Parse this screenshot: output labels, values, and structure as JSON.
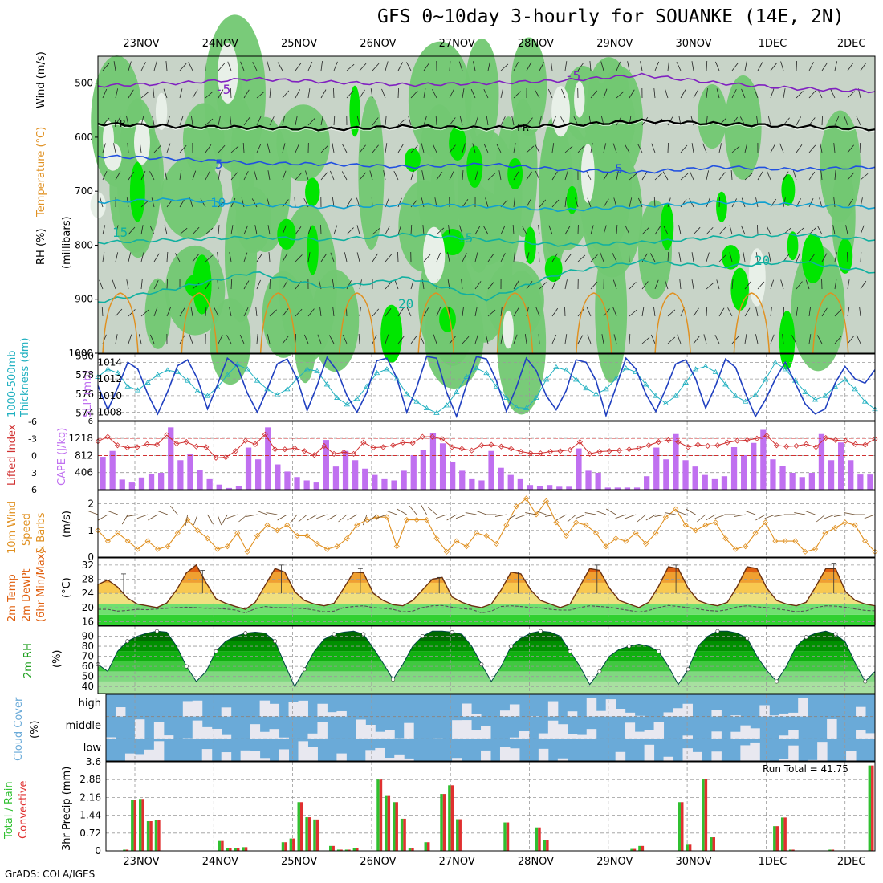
{
  "title": "GFS 0~10day 3-hourly for SOUANKE (14E, 2N)",
  "credit": "GrADS: COLA/IGES",
  "dates": [
    "23NOV",
    "24NOV",
    "25NOV",
    "26NOV",
    "27NOV",
    "28NOV",
    "29NOV",
    "30NOV",
    "1DEC",
    "2DEC"
  ],
  "colors": {
    "rh_light": "#c8d4c8",
    "rh_mid": "#72c872",
    "rh_bright": "#00e600",
    "temp_cold": "#8020c0",
    "temp_fr": "#000000",
    "temp_blue": "#2050e0",
    "temp_cyan": "#10a0d0",
    "temp_teal": "#10b0a0",
    "temp_warm": "#e09020",
    "slp": "#2040c0",
    "thickness": "#20b0c0",
    "cape": "#c070f0",
    "lifted": "#d03030",
    "wind": "#e09020",
    "t2m": "#e06010",
    "cloud": "#6aaad8",
    "precip_total": "#30c030",
    "precip_conv": "#e03030"
  },
  "chart_data": [
    {
      "type": "heatmap",
      "name": "upper_air",
      "ylabel": [
        "RH (%)",
        "Temperature (°C)",
        "Wind (m/s)"
      ],
      "ylabel2": "(millibars)",
      "y_ticks": [
        500,
        600,
        700,
        800,
        900,
        1000
      ],
      "ylim": [
        1000,
        450
      ],
      "contour_labels": [
        "-5",
        "FR",
        "5",
        "10",
        "15",
        "20"
      ],
      "isotherms_mb": {
        "-5": [
          505,
          500,
          492,
          498,
          503,
          500,
          495,
          485,
          500,
          510,
          515
        ],
        "0": [
          575,
          580,
          582,
          585,
          580,
          583,
          578,
          570,
          575,
          580,
          585
        ],
        "5": [
          635,
          640,
          648,
          650,
          655,
          650,
          660,
          665,
          655,
          660,
          655
        ],
        "10": [
          720,
          715,
          725,
          730,
          725,
          728,
          735,
          728,
          720,
          725,
          730
        ],
        "15": [
          795,
          790,
          785,
          790,
          780,
          790,
          800,
          795,
          785,
          780,
          790
        ],
        "20": [
          905,
          880,
          850,
          880,
          860,
          900,
          850,
          830,
          840,
          830,
          850
        ]
      }
    },
    {
      "type": "line",
      "name": "pressure",
      "ylabel_left": [
        "1000-500mb",
        "Thickness (dm)"
      ],
      "ylabel_right": "SLP (mb)",
      "left_ticks": [
        574,
        576,
        578,
        580
      ],
      "right_ticks": [
        1008,
        1010,
        1012,
        1014
      ],
      "left_ylim": [
        573.2,
        580.2
      ],
      "right_ylim": [
        1007,
        1015
      ],
      "slp": [
        1011.2,
        1008.3,
        1011.0,
        1014.0,
        1013.2,
        1010.2,
        1007.8,
        1010.5,
        1013.6,
        1014.3,
        1012.0,
        1008.4,
        1011.3,
        1014.5,
        1013.5,
        1010.3,
        1008.0,
        1010.8,
        1013.8,
        1014.4,
        1012.0,
        1008.2,
        1011.2,
        1014.6,
        1013.0,
        1010.0,
        1008.0,
        1010.4,
        1014.2,
        1014.5,
        1012.1,
        1008.0,
        1011.0,
        1014.7,
        1014.5,
        1010.4,
        1007.5,
        1011.3,
        1014.7,
        1014.4,
        1011.8,
        1008.1,
        1011.0,
        1014.5,
        1013.0,
        1010.0,
        1008.3,
        1010.6,
        1014.3,
        1014.0,
        1011.8,
        1007.6,
        1011.0,
        1014.5,
        1013.2,
        1010.2,
        1008.1,
        1010.8,
        1013.8,
        1014.3,
        1012.0,
        1008.5,
        1011.2,
        1014.4,
        1013.4,
        1010.3,
        1007.5,
        1009.5,
        1012.0,
        1014.0,
        1011.5,
        1009.0,
        1007.8,
        1008.4,
        1011.5,
        1013.5,
        1012.0,
        1011.5,
        1013.1
      ],
      "thickness": [
        577.8,
        578.6,
        578.2,
        576.8,
        576.4,
        577.2,
        578.0,
        578.5,
        578.3,
        577.4,
        576.3,
        575.8,
        576.7,
        578.0,
        579.1,
        578.6,
        577.4,
        576.5,
        575.9,
        576.5,
        577.6,
        578.6,
        578.4,
        577.0,
        575.6,
        574.9,
        575.5,
        576.8,
        578.2,
        578.6,
        577.6,
        576.0,
        575.2,
        574.5,
        574.0,
        574.8,
        576.2,
        577.8,
        578.7,
        578.2,
        576.8,
        575.6,
        574.6,
        574.5,
        575.6,
        577.5,
        578.8,
        578.5,
        577.5,
        576.6,
        576.0,
        576.5,
        577.6,
        578.7,
        578.3,
        577.0,
        575.8,
        575.0,
        575.8,
        577.2,
        578.6,
        578.9,
        578.3,
        577.0,
        575.8,
        575.2,
        575.9,
        577.5,
        579.3,
        578.6,
        577.4,
        576.2,
        575.4,
        575.8,
        576.8,
        577.5,
        576.5,
        575.2,
        574.4
      ]
    },
    {
      "type": "bar",
      "name": "stability",
      "ylabel_left": "Lifted Index",
      "ylabel_right": "CAPE (J/kg)",
      "left_ticks": [
        "-6",
        "-3",
        "0",
        "3",
        "6"
      ],
      "right_ticks": [
        406,
        812,
        1218
      ],
      "cape_ylim": [
        0,
        1620
      ],
      "cape": [
        780,
        920,
        240,
        170,
        290,
        380,
        400,
        1480,
        700,
        840,
        470,
        250,
        120,
        40,
        80,
        1000,
        720,
        1480,
        600,
        430,
        300,
        220,
        170,
        1180,
        550,
        920,
        700,
        500,
        350,
        250,
        220,
        450,
        820,
        950,
        1350,
        1100,
        650,
        450,
        250,
        220,
        920,
        520,
        350,
        250,
        110,
        80,
        110,
        70,
        70,
        980,
        450,
        400,
        50,
        50,
        50,
        50,
        320,
        1000,
        720,
        1320,
        700,
        550,
        350,
        250,
        320,
        1010,
        820,
        1110,
        1420,
        720,
        560,
        400,
        300,
        400,
        1320,
        700,
        1120,
        700,
        360,
        360
      ],
      "lifted_index": [
        -2.5,
        -3.3,
        -1.8,
        -1.4,
        -1.5,
        -2.0,
        -1.9,
        -3.6,
        -2.1,
        -2.4,
        -1.6,
        -1.5,
        0.4,
        0.3,
        -0.8,
        -2.6,
        -2.0,
        -3.7,
        -1.1,
        -1.1,
        -1.3,
        -0.8,
        -0.1,
        -1.7,
        -0.3,
        -0.6,
        -0.3,
        -2.3,
        -1.4,
        -1.5,
        -1.8,
        -2.3,
        -2.2,
        -3.3,
        -3.3,
        -2.9,
        -1.5,
        -1.2,
        -0.9,
        -1.8,
        -1.9,
        -1.6,
        -1.2,
        -0.7,
        -0.4,
        -0.4,
        -0.7,
        -0.8,
        -1.0,
        -2.4,
        -0.3,
        -0.7,
        -0.8,
        -0.9,
        -1.1,
        -1.3,
        -1.8,
        -2.4,
        -2.7,
        -2.4,
        -1.5,
        -1.9,
        -1.7,
        -1.8,
        -2.3,
        -2.6,
        -2.7,
        -3.0,
        -3.5,
        -1.8,
        -1.6,
        -1.7,
        -2.0,
        -1.5,
        -3.1,
        -2.7,
        -2.6,
        -2.0,
        -1.9,
        -2.9
      ]
    },
    {
      "type": "line",
      "name": "wind10m",
      "ylabel": [
        "10m Wind",
        "Speed",
        "& Barbs"
      ],
      "ylabel2": "(m/s)",
      "y_ticks": [
        0,
        1,
        2
      ],
      "ylim": [
        0,
        2.5
      ],
      "speed": [
        1.0,
        0.6,
        0.9,
        0.6,
        0.3,
        0.6,
        0.3,
        0.4,
        0.9,
        1.4,
        1.0,
        0.7,
        0.3,
        0.4,
        0.9,
        0.2,
        0.8,
        1.2,
        1.0,
        1.2,
        0.8,
        0.8,
        0.5,
        0.3,
        0.4,
        0.7,
        1.2,
        1.4,
        1.5,
        1.5,
        0.4,
        1.4,
        1.4,
        1.4,
        0.7,
        0.2,
        0.6,
        0.4,
        0.9,
        0.8,
        0.5,
        1.2,
        1.9,
        2.2,
        1.6,
        2.1,
        1.3,
        0.8,
        1.3,
        1.2,
        0.9,
        0.4,
        0.7,
        0.6,
        0.9,
        0.5,
        0.9,
        1.5,
        1.8,
        1.2,
        1.0,
        1.2,
        1.3,
        0.7,
        0.3,
        0.4,
        0.9,
        1.3,
        0.6,
        0.6,
        0.6,
        0.2,
        0.3,
        0.9,
        1.1,
        1.3,
        1.2,
        0.6,
        0.2
      ],
      "barb_angles": [
        200,
        150,
        200,
        120,
        170,
        160,
        150,
        200,
        230,
        100,
        110,
        60,
        70,
        120,
        160,
        140,
        170,
        200,
        190,
        150,
        130,
        140,
        150,
        160,
        150,
        140,
        150,
        110,
        140,
        160,
        200,
        210,
        230,
        240,
        220,
        160,
        150,
        160,
        190,
        200,
        180,
        170,
        150,
        160,
        190,
        200,
        170,
        150,
        140,
        160,
        190,
        200,
        210,
        160,
        160,
        140,
        150,
        170,
        190,
        200,
        210,
        140,
        150,
        160,
        180,
        170,
        200,
        150,
        160,
        170,
        180,
        190,
        200,
        140,
        160,
        170,
        190,
        180,
        160
      ]
    },
    {
      "type": "area",
      "name": "temp2m",
      "ylabel": [
        "2m Temp",
        "2m DewPt",
        "(6hr Min/Max)"
      ],
      "ylabel2": "(°C)",
      "y_ticks": [
        16,
        20,
        24,
        28,
        32
      ],
      "ylim": [
        15,
        34
      ],
      "temp": [
        26.5,
        27.8,
        25.8,
        22.7,
        21.0,
        20.5,
        20.0,
        21.3,
        25.0,
        29.8,
        32.0,
        27.0,
        22.5,
        21.2,
        20.3,
        19.5,
        21.5,
        26.3,
        31.0,
        30.0,
        24.5,
        22.0,
        21.0,
        20.5,
        21.2,
        25.5,
        30.0,
        29.8,
        24.0,
        22.0,
        20.8,
        20.5,
        22.0,
        25.0,
        28.0,
        28.5,
        23.0,
        21.5,
        20.5,
        20.0,
        21.0,
        25.0,
        30.0,
        29.5,
        25.0,
        22.0,
        21.0,
        20.0,
        21.0,
        26.0,
        31.0,
        30.5,
        25.5,
        22.0,
        21.0,
        20.0,
        21.5,
        26.0,
        31.5,
        31.0,
        25.5,
        22.0,
        21.0,
        20.5,
        21.5,
        26.0,
        31.5,
        31.0,
        25.5,
        22.0,
        21.0,
        20.5,
        21.5,
        26.0,
        31.0,
        31.0,
        24.5,
        22.0,
        21.0,
        20.5
      ],
      "dewpoint": [
        19.5,
        19.5,
        19.0,
        19.2,
        19.5,
        19.4,
        19.6,
        19.8,
        20.0,
        20.1,
        20.0,
        19.8,
        19.8,
        19.6,
        19.3,
        18.5,
        19.7,
        20.3,
        20.0,
        20.0,
        19.8,
        19.7,
        19.3,
        18.8,
        19.0,
        20.0,
        20.3,
        20.5,
        20.0,
        19.8,
        19.5,
        18.8,
        19.0,
        20.0,
        20.5,
        20.6,
        20.1,
        19.7,
        19.5,
        18.5,
        19.0,
        20.3,
        20.5,
        20.3,
        20.0,
        19.9,
        19.5,
        19.3,
        19.3,
        20.0,
        20.5,
        20.3,
        20.1,
        19.6,
        19.2,
        18.7,
        19.2,
        20.0,
        20.6,
        20.3,
        20.0,
        19.6,
        19.2,
        19.0,
        19.4,
        20.2,
        20.5,
        20.2,
        20.0,
        19.6,
        19.3,
        18.8,
        19.1,
        20.0,
        20.5,
        20.4,
        20.1,
        19.6,
        19.2,
        19.1
      ],
      "whisker_max": [
        29.5,
        30.5,
        32.0,
        31.0,
        28.5,
        30.0,
        32.0,
        32.0,
        30.0,
        32.5
      ]
    },
    {
      "type": "area",
      "name": "rh2m",
      "ylabel": "2m RH",
      "ylabel2": "(%)",
      "y_ticks": [
        40,
        50,
        60,
        70,
        80,
        90
      ],
      "ylim": [
        33,
        100
      ],
      "rh": [
        62,
        55,
        75,
        85,
        90,
        93,
        95,
        94,
        80,
        60,
        45,
        55,
        75,
        85,
        90,
        93,
        94,
        93,
        85,
        62,
        40,
        57,
        75,
        87,
        92,
        94,
        95,
        92,
        78,
        63,
        47,
        62,
        80,
        90,
        95,
        95,
        94,
        92,
        80,
        62,
        45,
        60,
        80,
        88,
        93,
        95,
        94,
        90,
        75,
        60,
        42,
        55,
        70,
        77,
        80,
        82,
        80,
        75,
        60,
        42,
        57,
        80,
        90,
        95,
        95,
        93,
        88,
        70,
        56,
        45,
        60,
        80,
        89,
        93,
        95,
        92,
        84,
        63,
        45,
        55
      ]
    },
    {
      "type": "heatmap",
      "name": "cloud",
      "ylabel": "Cloud Cover",
      "ylabel2": "(%)",
      "levels": [
        "high",
        "middle",
        "low"
      ]
    },
    {
      "type": "bar",
      "name": "precip",
      "ylabel": [
        "Total / Rain",
        "Convective"
      ],
      "ylabel2": "3hr Precip (mm)",
      "y_ticks": [
        "0",
        "0.72",
        "1.44",
        "2.16",
        "2.88",
        "3.6"
      ],
      "ylim": [
        0,
        3.6
      ],
      "run_total_label": "Run Total = 41.75",
      "values": [
        0,
        0,
        0.05,
        2.05,
        2.1,
        1.2,
        1.25,
        0,
        0,
        0,
        0,
        0,
        0,
        0,
        0.4,
        0.1,
        0.1,
        0.15,
        0,
        0,
        0,
        0,
        0.35,
        0.5,
        1.97,
        1.36,
        1.27,
        0,
        0.2,
        0.05,
        0.05,
        0.1,
        0,
        0,
        2.88,
        2.25,
        1.97,
        1.3,
        0.1,
        0,
        0.35,
        0,
        2.3,
        2.65,
        1.28,
        0,
        0,
        0,
        0,
        0,
        1.15,
        0,
        0,
        0,
        0.95,
        0.45,
        0,
        0,
        0,
        0,
        0,
        0,
        0,
        0,
        0,
        0,
        0.08,
        0.2,
        0,
        0,
        0,
        0,
        1.97,
        0.25,
        0,
        2.9,
        0.55,
        0,
        0,
        0,
        0,
        0,
        0,
        0,
        1.0,
        1.35,
        0.05,
        0,
        0,
        0,
        0,
        0.05,
        0,
        0,
        0,
        0,
        3.45
      ]
    }
  ]
}
